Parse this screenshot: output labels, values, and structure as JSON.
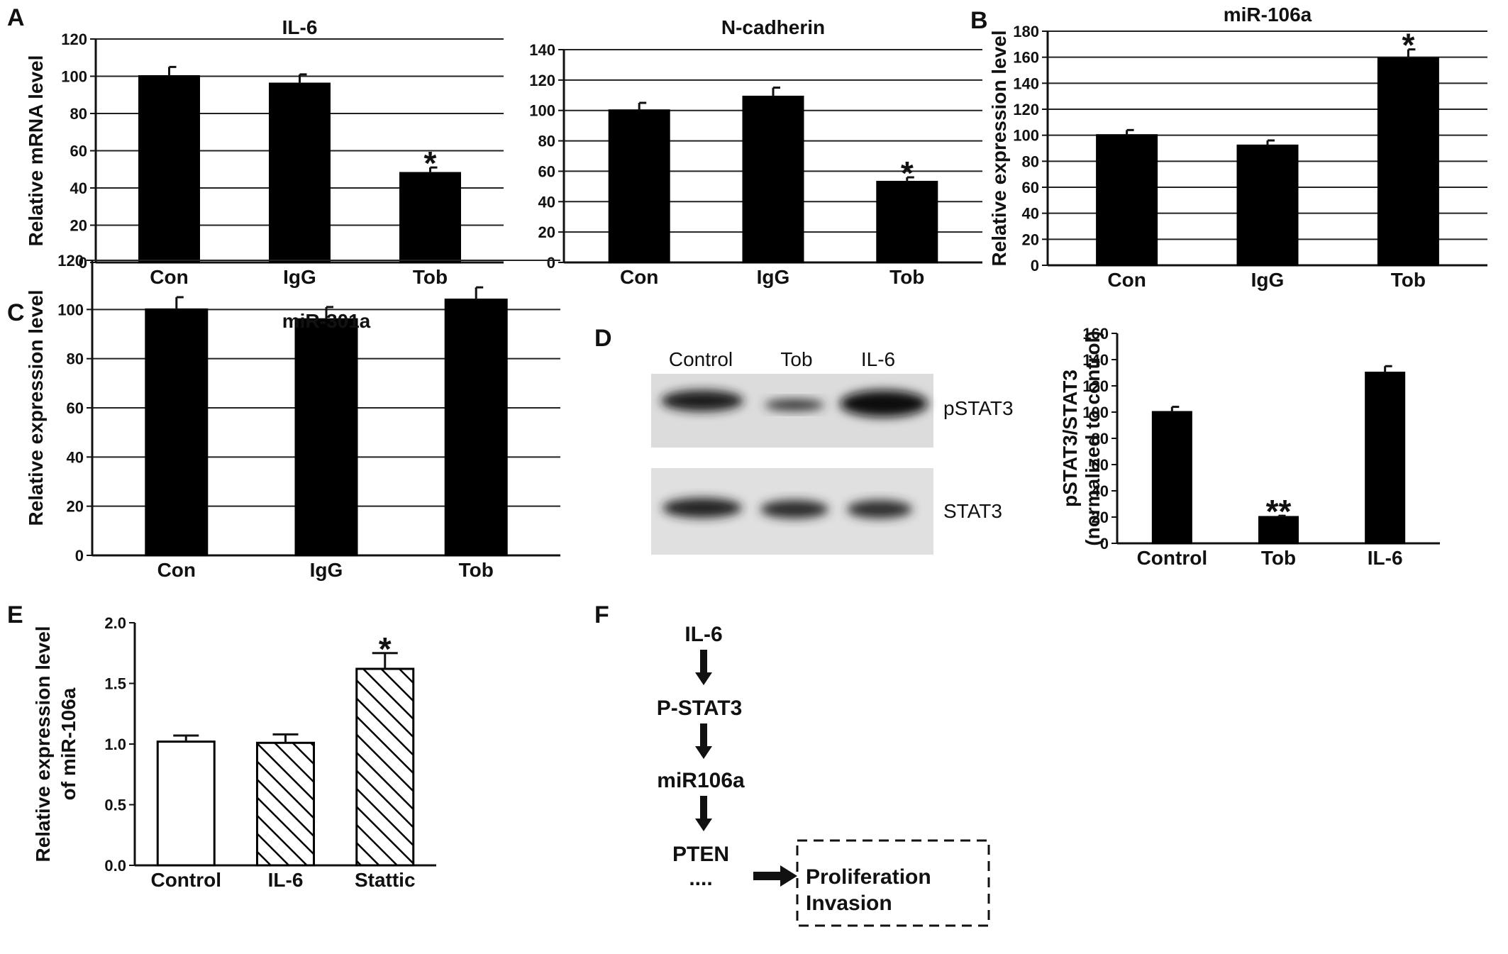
{
  "panels": {
    "A": "A",
    "B": "B",
    "C": "C",
    "D": "D",
    "E": "E",
    "F": "F"
  },
  "chart_data": [
    {
      "id": "A1",
      "type": "bar",
      "title": "IL-6",
      "ylabel": "Relative mRNA level",
      "xlabel": "",
      "categories": [
        "Con",
        "IgG",
        "Tob"
      ],
      "values": [
        100,
        96,
        48
      ],
      "errors": [
        5,
        5,
        3
      ],
      "annotations": [
        "",
        "",
        "*"
      ],
      "ylim": [
        0,
        120
      ],
      "yticks": [
        0,
        20,
        40,
        60,
        80,
        100,
        120
      ],
      "grid": true,
      "bar_fill": "#000000"
    },
    {
      "id": "A2",
      "type": "bar",
      "title": "N-cadherin",
      "ylabel": "",
      "xlabel": "",
      "categories": [
        "Con",
        "IgG",
        "Tob"
      ],
      "values": [
        100,
        109,
        53
      ],
      "errors": [
        5,
        6,
        3
      ],
      "annotations": [
        "",
        "",
        "*"
      ],
      "ylim": [
        0,
        140
      ],
      "yticks": [
        0,
        20,
        40,
        60,
        80,
        100,
        120,
        140
      ],
      "grid": true,
      "bar_fill": "#000000"
    },
    {
      "id": "B",
      "type": "bar",
      "title": "miR-106a",
      "ylabel": "Relative expression level",
      "xlabel": "",
      "categories": [
        "Con",
        "IgG",
        "Tob"
      ],
      "values": [
        100,
        92,
        159
      ],
      "errors": [
        4,
        4,
        7
      ],
      "annotations": [
        "",
        "",
        "*"
      ],
      "ylim": [
        0,
        180
      ],
      "yticks": [
        0,
        20,
        40,
        60,
        80,
        100,
        120,
        140,
        160,
        180
      ],
      "grid": true,
      "bar_fill": "#000000"
    },
    {
      "id": "C",
      "type": "bar",
      "title": "miR-301a",
      "ylabel": "Relative expression level",
      "xlabel": "",
      "categories": [
        "Con",
        "IgG",
        "Tob"
      ],
      "values": [
        100,
        96,
        104
      ],
      "errors": [
        5,
        5,
        5
      ],
      "annotations": [
        "",
        "",
        ""
      ],
      "ylim": [
        0,
        120
      ],
      "yticks": [
        0,
        20,
        40,
        60,
        80,
        100,
        120
      ],
      "grid": true,
      "bar_fill": "#000000"
    },
    {
      "id": "D",
      "type": "bar",
      "title": "",
      "ylabel": "pSTAT3/STAT3",
      "ylabel2": "(normalized to control)",
      "xlabel": "",
      "categories": [
        "Control",
        "Tob",
        "IL-6"
      ],
      "values": [
        100,
        20,
        130
      ],
      "errors": [
        4,
        1,
        5
      ],
      "annotations": [
        "",
        "**",
        ""
      ],
      "ylim": [
        0,
        160
      ],
      "yticks": [
        0,
        20,
        40,
        60,
        80,
        100,
        120,
        140,
        160
      ],
      "grid": false,
      "bar_fill": "#000000"
    },
    {
      "id": "E",
      "type": "bar",
      "title": "",
      "ylabel": "Relative expression level",
      "ylabel2": "of miR-106a",
      "xlabel": "",
      "categories": [
        "Control",
        "IL-6",
        "Stattic"
      ],
      "values": [
        1.02,
        1.01,
        1.62
      ],
      "errors": [
        0.05,
        0.07,
        0.13
      ],
      "annotations": [
        "",
        "",
        "*"
      ],
      "ylim": [
        0,
        2.0
      ],
      "yticks": [
        "0.0",
        "0.5",
        "1.0",
        "1.5",
        "2.0"
      ],
      "grid": false,
      "bar_styles": [
        "open",
        "hatched",
        "hatched"
      ]
    }
  ],
  "blot": {
    "lanes": [
      "Control",
      "Tob",
      "IL-6"
    ],
    "rows": [
      "pSTAT3",
      "STAT3"
    ]
  },
  "pathway": {
    "steps": [
      "IL-6",
      "P-STAT3",
      "miR106a",
      "PTEN"
    ],
    "ellipsis": "....",
    "outcomes": [
      "Proliferation",
      "Invasion"
    ]
  }
}
